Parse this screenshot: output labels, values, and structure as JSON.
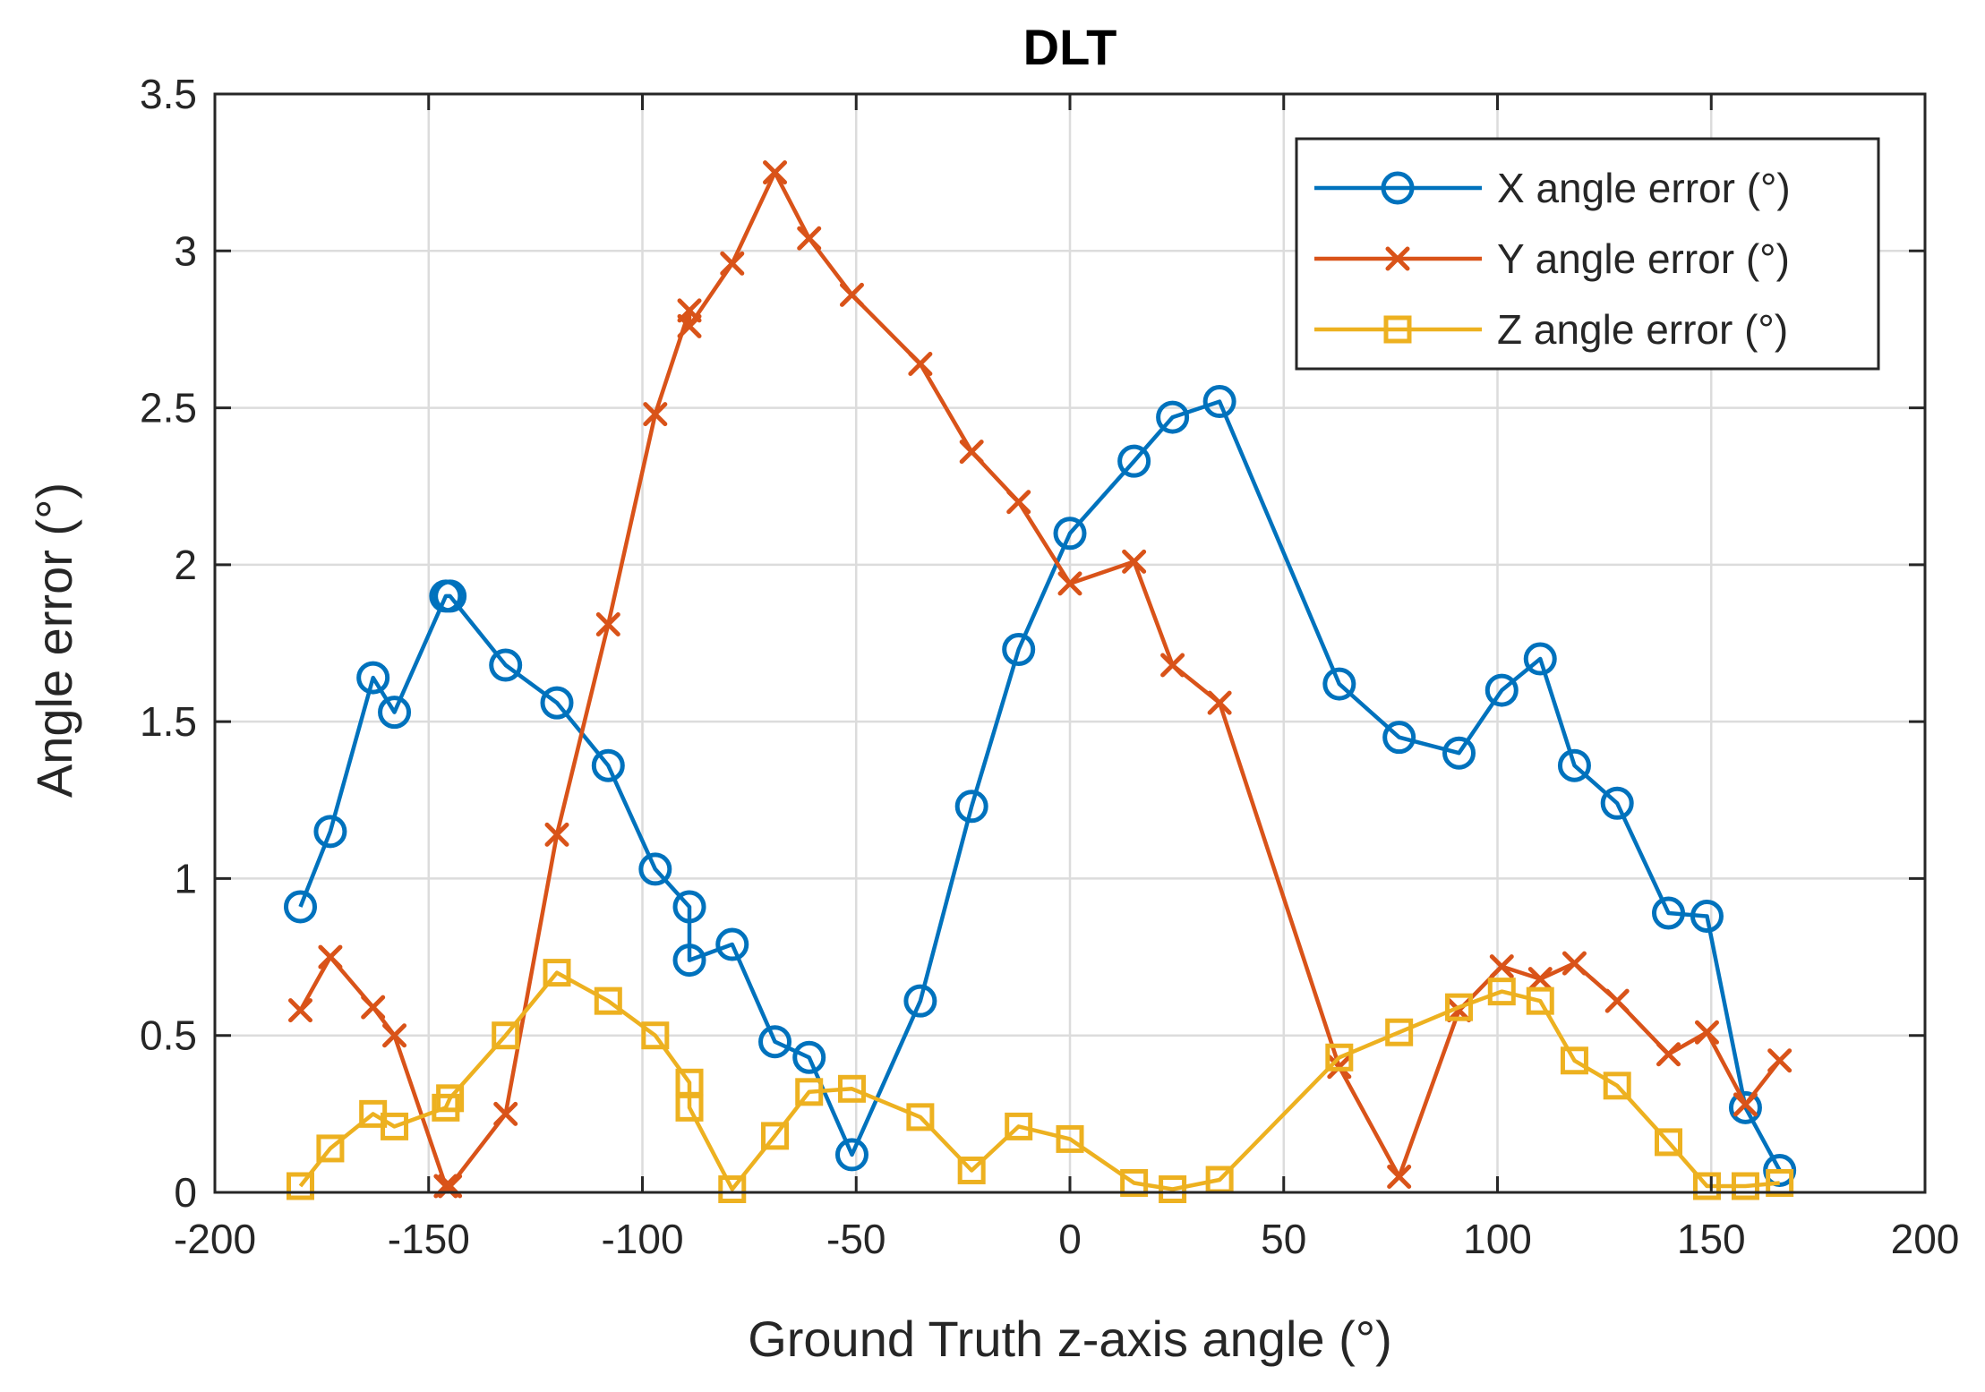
{
  "chart_data": {
    "type": "line",
    "title": "DLT",
    "xlabel": "Ground Truth z-axis angle (°)",
    "ylabel": "Angle error (°)",
    "xlim": [
      -200,
      200
    ],
    "ylim": [
      0,
      3.5
    ],
    "xticks": [
      -200,
      -150,
      -100,
      -50,
      0,
      50,
      100,
      150,
      200
    ],
    "yticks": [
      0,
      0.5,
      1,
      1.5,
      2,
      2.5,
      3,
      3.5
    ],
    "xtick_labels": [
      "-200",
      "-150",
      "-100",
      "-50",
      "0",
      "50",
      "100",
      "150",
      "200"
    ],
    "ytick_labels": [
      "0",
      "0.5",
      "1",
      "1.5",
      "2",
      "2.5",
      "3",
      "3.5"
    ],
    "grid": true,
    "legend_position": "top-right",
    "series": [
      {
        "name": "X angle error (°)",
        "color": "#0072BD",
        "marker": "circle",
        "points": [
          [
            -180,
            0.91
          ],
          [
            -173,
            1.15
          ],
          [
            -163,
            1.64
          ],
          [
            -158,
            1.53
          ],
          [
            -146,
            1.9
          ],
          [
            -145,
            1.9
          ],
          [
            -132,
            1.68
          ],
          [
            -120,
            1.56
          ],
          [
            -108,
            1.36
          ],
          [
            -97,
            1.03
          ],
          [
            -89,
            0.91
          ],
          [
            -89,
            0.74
          ],
          [
            -79,
            0.79
          ],
          [
            -69,
            0.48
          ],
          [
            -61,
            0.43
          ],
          [
            -51,
            0.12
          ],
          [
            -35,
            0.61
          ],
          [
            -23,
            1.23
          ],
          [
            -12,
            1.73
          ],
          [
            0,
            2.1
          ],
          [
            15,
            2.33
          ],
          [
            24,
            2.47
          ],
          [
            35,
            2.52
          ],
          [
            63,
            1.62
          ],
          [
            77,
            1.45
          ],
          [
            91,
            1.4
          ],
          [
            101,
            1.6
          ],
          [
            110,
            1.7
          ],
          [
            118,
            1.36
          ],
          [
            128,
            1.24
          ],
          [
            140,
            0.89
          ],
          [
            149,
            0.88
          ],
          [
            158,
            0.27
          ],
          [
            166,
            0.07
          ]
        ]
      },
      {
        "name": "Y angle error (°)",
        "color": "#D95319",
        "marker": "x",
        "points": [
          [
            -180,
            0.58
          ],
          [
            -173,
            0.75
          ],
          [
            -163,
            0.59
          ],
          [
            -158,
            0.5
          ],
          [
            -146,
            0.02
          ],
          [
            -145,
            0.02
          ],
          [
            -132,
            0.25
          ],
          [
            -120,
            1.14
          ],
          [
            -108,
            1.81
          ],
          [
            -97,
            2.48
          ],
          [
            -89,
            2.81
          ],
          [
            -89,
            2.76
          ],
          [
            -79,
            2.96
          ],
          [
            -69,
            3.25
          ],
          [
            -61,
            3.04
          ],
          [
            -51,
            2.86
          ],
          [
            -35,
            2.64
          ],
          [
            -23,
            2.36
          ],
          [
            -12,
            2.2
          ],
          [
            0,
            1.94
          ],
          [
            15,
            2.01
          ],
          [
            24,
            1.68
          ],
          [
            35,
            1.56
          ],
          [
            63,
            0.4
          ],
          [
            77,
            0.05
          ],
          [
            91,
            0.58
          ],
          [
            101,
            0.72
          ],
          [
            110,
            0.68
          ],
          [
            118,
            0.73
          ],
          [
            128,
            0.61
          ],
          [
            140,
            0.44
          ],
          [
            149,
            0.51
          ],
          [
            158,
            0.28
          ],
          [
            166,
            0.42
          ]
        ]
      },
      {
        "name": "Z angle error (°)",
        "color": "#EDB120",
        "marker": "square",
        "points": [
          [
            -180,
            0.02
          ],
          [
            -173,
            0.14
          ],
          [
            -163,
            0.25
          ],
          [
            -158,
            0.21
          ],
          [
            -146,
            0.27
          ],
          [
            -145,
            0.3
          ],
          [
            -132,
            0.5
          ],
          [
            -120,
            0.7
          ],
          [
            -108,
            0.61
          ],
          [
            -97,
            0.5
          ],
          [
            -89,
            0.35
          ],
          [
            -89,
            0.27
          ],
          [
            -79,
            0.01
          ],
          [
            -69,
            0.18
          ],
          [
            -61,
            0.32
          ],
          [
            -51,
            0.33
          ],
          [
            -35,
            0.24
          ],
          [
            -23,
            0.07
          ],
          [
            -12,
            0.21
          ],
          [
            0,
            0.17
          ],
          [
            15,
            0.03
          ],
          [
            24,
            0.01
          ],
          [
            35,
            0.04
          ],
          [
            63,
            0.43
          ],
          [
            77,
            0.51
          ],
          [
            91,
            0.59
          ],
          [
            101,
            0.64
          ],
          [
            110,
            0.61
          ],
          [
            118,
            0.42
          ],
          [
            128,
            0.34
          ],
          [
            140,
            0.16
          ],
          [
            149,
            0.02
          ],
          [
            158,
            0.02
          ],
          [
            166,
            0.03
          ]
        ]
      }
    ]
  }
}
